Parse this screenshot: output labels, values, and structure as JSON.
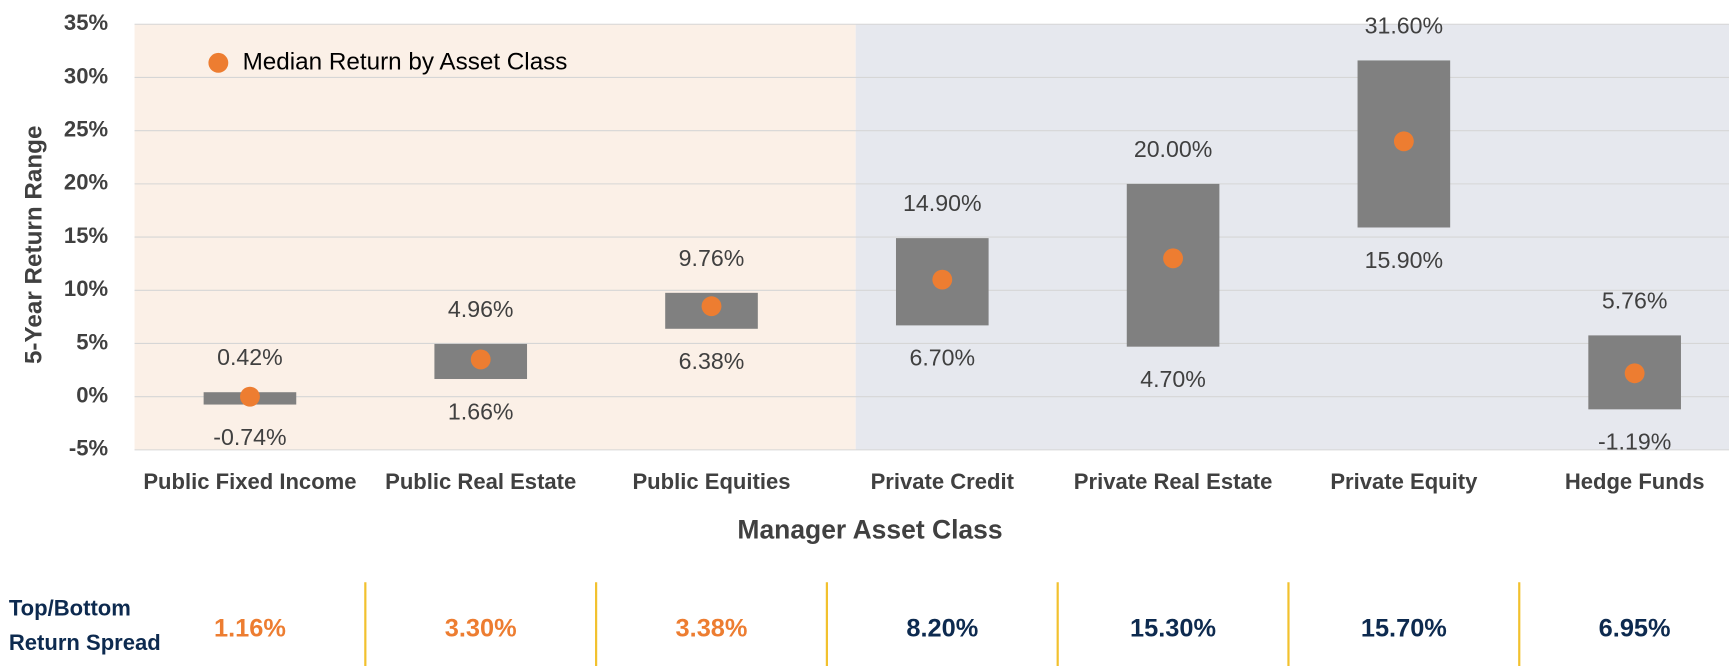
{
  "chart_data": {
    "type": "range",
    "categories": [
      "Public Fixed Income",
      "Public Real Estate",
      "Public Equities",
      "Private Credit",
      "Private Real Estate",
      "Private Equity",
      "Hedge Funds"
    ],
    "high": [
      0.42,
      4.96,
      9.76,
      14.9,
      20.0,
      31.6,
      5.76
    ],
    "low": [
      -0.74,
      1.66,
      6.38,
      6.7,
      4.7,
      15.9,
      -1.19
    ],
    "high_labels": [
      "0.42%",
      "4.96%",
      "9.76%",
      "14.90%",
      "20.00%",
      "31.60%",
      "5.76%"
    ],
    "low_labels": [
      "-0.74%",
      "1.66%",
      "6.38%",
      "6.70%",
      "4.70%",
      "15.90%",
      "-1.19%"
    ],
    "bar_color": "#808080",
    "median": {
      "name": "Median Return by Asset Class",
      "color": "#ed7d31",
      "values": [
        0,
        3.5,
        8.5,
        11,
        13,
        24,
        2.2
      ]
    },
    "ylabel": "5-Year Return Range",
    "xlabel": "Manager Asset Class",
    "ylim": [
      -5,
      35
    ],
    "yticks": [
      {
        "value": -5,
        "label": "-5%"
      },
      {
        "value": 0,
        "label": "0%"
      },
      {
        "value": 5,
        "label": "5%"
      },
      {
        "value": 10,
        "label": "10%"
      },
      {
        "value": 15,
        "label": "15%"
      },
      {
        "value": 20,
        "label": "20%"
      },
      {
        "value": 25,
        "label": "25%"
      },
      {
        "value": 30,
        "label": "30%"
      },
      {
        "value": 35,
        "label": "35%"
      }
    ],
    "grid": true
  },
  "spread_table": {
    "label": [
      "Top/Bottom",
      "Return Spread"
    ],
    "values": [
      "1.16%",
      "3.30%",
      "3.38%",
      "8.20%",
      "15.30%",
      "15.70%",
      "6.95%"
    ],
    "colors": [
      "#ed7d31",
      "#ed7d31",
      "#ed7d31",
      "#0d2a4f",
      "#0d2a4f",
      "#0d2a4f",
      "#0d2a4f"
    ]
  }
}
